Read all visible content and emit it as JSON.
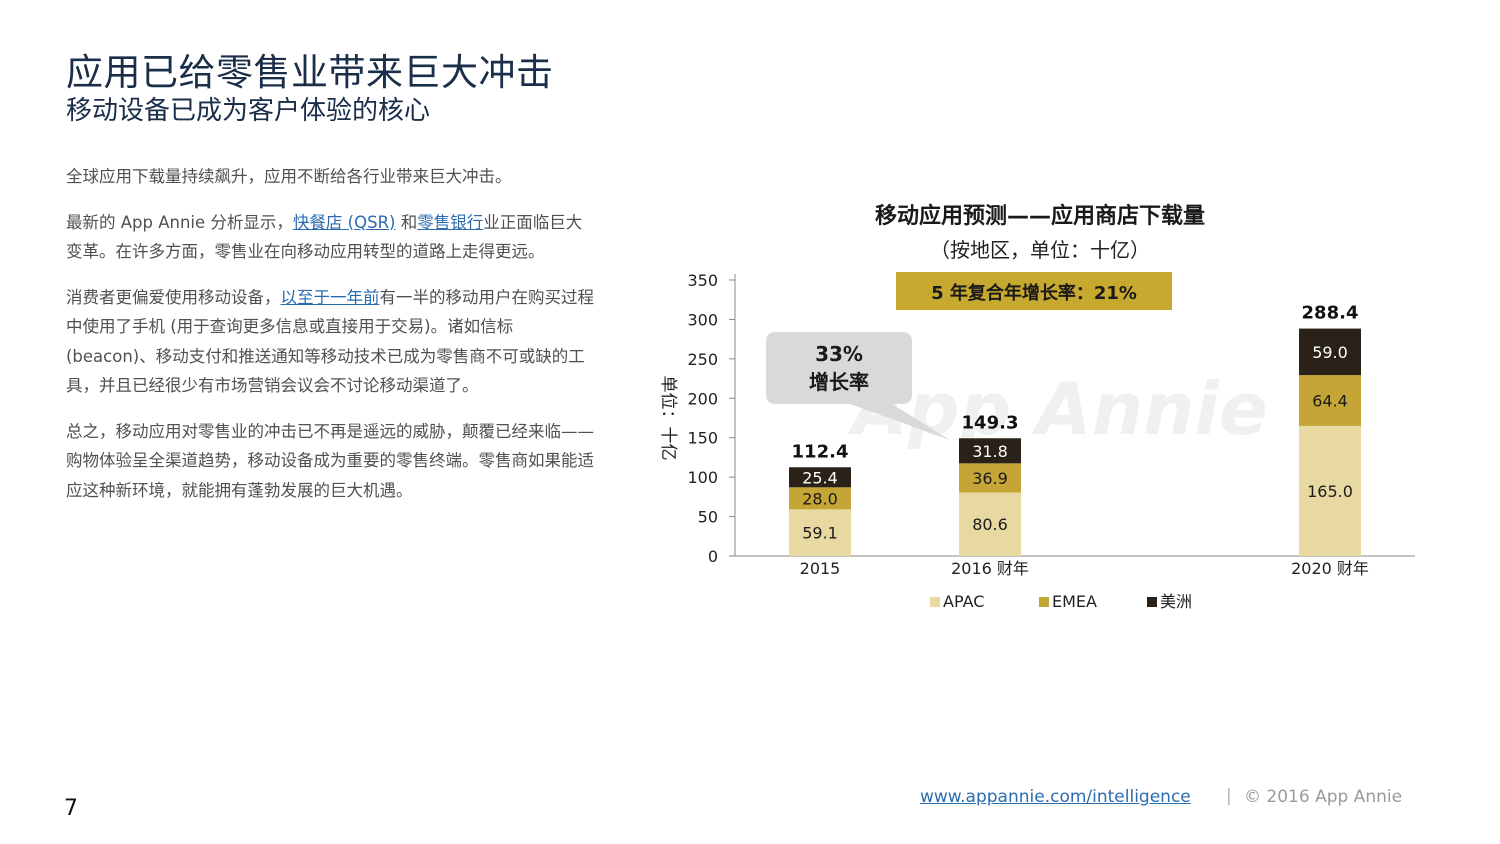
{
  "header": {
    "title": "应用已给零售业带来巨大冲击",
    "subtitle": "移动设备已成为客户体验的核心"
  },
  "body": {
    "p1": "全球应用下载量持续飙升，应用不断给各行业带来巨大冲击。",
    "p2_pre": "最新的 App Annie 分析显示，",
    "p2_link1": "快餐店 (QSR)",
    "p2_mid": " 和",
    "p2_link2": "零售银行",
    "p2_post": "业正面临巨大变革。在许多方面，零售业在向移动应用转型的道路上走得更远。",
    "p3_pre": "消费者更偏爱使用移动设备，",
    "p3_link": "以至于一年前",
    "p3_post": "有一半的移动用户在购买过程中使用了手机 (用于查询更多信息或直接用于交易)。诸如信标 (beacon)、移动支付和推送通知等移动技术已成为零售商不可或缺的工具，并且已经很少有市场营销会议会不讨论移动渠道了。",
    "p4": "总之，移动应用对零售业的冲击已不再是遥远的威胁，颠覆已经来临——购物体验呈全渠道趋势，移动设备成为重要的零售终端。零售商如果能适应这种新环境，就能拥有蓬勃发展的巨大机遇。"
  },
  "chart_data": {
    "type": "bar",
    "stacked": true,
    "title": "移动应用预测——应用商店下载量",
    "subtitle": "（按地区，单位：十亿）",
    "ylabel": "单位：十亿",
    "xlabel": "",
    "categories": [
      "2015",
      "2016 财年",
      "2020 财年"
    ],
    "series": [
      {
        "name": "APAC",
        "values": [
          59.1,
          80.6,
          165.0
        ],
        "labels": [
          "59.1",
          "80.6",
          "165.0"
        ],
        "color": "#e8d9a3"
      },
      {
        "name": "EMEA",
        "values": [
          28.0,
          36.9,
          64.4
        ],
        "labels": [
          "28.0",
          "36.9",
          "64.4"
        ],
        "color": "#c4a535"
      },
      {
        "name": "美洲",
        "values": [
          25.4,
          31.8,
          59.0
        ],
        "labels": [
          "25.4",
          "31.8",
          "59.0"
        ],
        "color": "#2a2118"
      }
    ],
    "totals": [
      "112.4",
      "149.3",
      "288.4"
    ],
    "ylim": [
      0,
      350
    ],
    "yticks": [
      0,
      50,
      100,
      150,
      200,
      250,
      300,
      350
    ],
    "grid": false,
    "legend_position": "bottom",
    "annotations": {
      "cagr": "5 年复合年增长率：21%",
      "growth_line1": "33%",
      "growth_line2": "增长率"
    },
    "watermark": "App Annie"
  },
  "footer": {
    "link": "www.appannie.com/intelligence",
    "separator": "|",
    "copyright": "© 2016 App Annie",
    "page_number": "7"
  }
}
